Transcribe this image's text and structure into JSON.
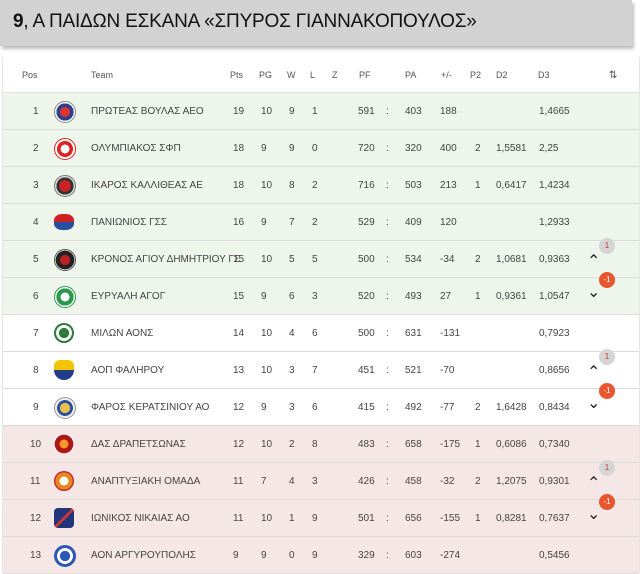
{
  "title": {
    "bold": "9",
    "rest": ", Α ΠΑΙΔΩΝ ΕΣΚΑΝΑ «ΣΠΥΡΟΣ ΓΙΑΝΝΑΚΟΠΟΥΛΟΣ»"
  },
  "headers": {
    "pos": "Pos",
    "team": "Team",
    "pts": "Pts",
    "pg": "PG",
    "w": "W",
    "l": "L",
    "z": "Z",
    "pf": "PF",
    "pa": "PA",
    "diff": "+/-",
    "p2": "P2",
    "d2": "D2",
    "d3": "D3",
    "sort": "⇅"
  },
  "colors": {
    "green_row": "#eef5ea",
    "red_row": "#f6e7e7",
    "badge_down": "#e8552e",
    "badge_up": "#d5d5d5"
  },
  "rows": [
    {
      "pos": "1",
      "team": "ΠΡΩΤΕΑΣ ΒΟΥΛΑΣ ΑΕΟ",
      "pts": "19",
      "pg": "10",
      "w": "9",
      "l": "1",
      "pf": "591",
      "sep": ":",
      "pa": "403",
      "diff": "188",
      "p2": "",
      "d2": "",
      "d3": "1,4665",
      "zone": "green",
      "logo": "logo-red-blue",
      "arrow": "",
      "badge": ""
    },
    {
      "pos": "2",
      "team": "ΟΛΥΜΠΙΑΚΟΣ ΣΦΠ",
      "pts": "18",
      "pg": "9",
      "w": "9",
      "l": "0",
      "pf": "720",
      "sep": ":",
      "pa": "320",
      "diff": "400",
      "p2": "2",
      "d2": "1,5581",
      "d3": "2,25",
      "zone": "green",
      "logo": "logo-red-white",
      "arrow": "",
      "badge": ""
    },
    {
      "pos": "3",
      "team": "ΙΚΑΡΟΣ ΚΑΛΛΙΘΕΑΣ ΑΕ",
      "pts": "18",
      "pg": "10",
      "w": "8",
      "l": "2",
      "pf": "716",
      "sep": ":",
      "pa": "503",
      "diff": "213",
      "p2": "1",
      "d2": "0,6417",
      "d3": "1,4234",
      "zone": "green",
      "logo": "logo-red-dark",
      "arrow": "",
      "badge": ""
    },
    {
      "pos": "4",
      "team": "ΠΑΝΙΩΝΙΟΣ ΓΣΣ",
      "pts": "16",
      "pg": "9",
      "w": "7",
      "l": "2",
      "pf": "529",
      "sep": ":",
      "pa": "409",
      "diff": "120",
      "p2": "",
      "d2": "",
      "d3": "1,2933",
      "zone": "green",
      "logo": "logo-red-blue-oval",
      "arrow": "",
      "badge": ""
    },
    {
      "pos": "5",
      "team": "ΚΡΟΝΟΣ ΑΓΙΟΥ ΔΗΜΗΤΡΙΟΥ ΓΣ",
      "pts": "15",
      "pg": "10",
      "w": "5",
      "l": "5",
      "pf": "500",
      "sep": ":",
      "pa": "534",
      "diff": "-34",
      "p2": "2",
      "d2": "1,0681",
      "d3": "0,9363",
      "zone": "green",
      "logo": "logo-dark-red",
      "arrow": "^",
      "badge": "1"
    },
    {
      "pos": "6",
      "team": "ΕΥΡΥΑΛΗ ΑΓΟΓ",
      "pts": "15",
      "pg": "9",
      "w": "6",
      "l": "3",
      "pf": "520",
      "sep": ":",
      "pa": "493",
      "diff": "27",
      "p2": "1",
      "d2": "0,9361",
      "d3": "1,0547",
      "zone": "green",
      "logo": "logo-green",
      "arrow": "v",
      "badge": "-1"
    },
    {
      "pos": "7",
      "team": "ΜΙΛΩΝ ΑΟΝΣ",
      "pts": "14",
      "pg": "10",
      "w": "4",
      "l": "6",
      "pf": "500",
      "sep": ":",
      "pa": "631",
      "diff": "-131",
      "p2": "",
      "d2": "",
      "d3": "0,7923",
      "zone": "white",
      "logo": "logo-green-helmet",
      "arrow": "",
      "badge": ""
    },
    {
      "pos": "8",
      "team": "ΑΟΠ ΦΑΛΗΡΟΥ",
      "pts": "13",
      "pg": "10",
      "w": "3",
      "l": "7",
      "pf": "451",
      "sep": ":",
      "pa": "521",
      "diff": "-70",
      "p2": "",
      "d2": "",
      "d3": "0,8656",
      "zone": "white",
      "logo": "logo-blue-yellow",
      "arrow": "^",
      "badge": "1"
    },
    {
      "pos": "9",
      "team": "ΦΑΡΟΣ ΚΕΡΑΤΣΙΝΙΟΥ ΑΟ",
      "pts": "12",
      "pg": "9",
      "w": "3",
      "l": "6",
      "pf": "415",
      "sep": ":",
      "pa": "492",
      "diff": "-77",
      "p2": "2",
      "d2": "1,6428",
      "d3": "0,8434",
      "zone": "white",
      "logo": "logo-yellow-blue",
      "arrow": "v",
      "badge": "-1"
    },
    {
      "pos": "10",
      "team": "ΔΑΣ ΔΡΑΠΕΤΣΩΝΑΣ",
      "pts": "12",
      "pg": "10",
      "w": "2",
      "l": "8",
      "pf": "483",
      "sep": ":",
      "pa": "658",
      "diff": "-175",
      "p2": "1",
      "d2": "0,6086",
      "d3": "0,7340",
      "zone": "red",
      "logo": "logo-red-orange",
      "arrow": "",
      "badge": ""
    },
    {
      "pos": "11",
      "team": "ΑΝΑΠΤΥΞΙΑΚΗ ΟΜΑΔΑ",
      "pts": "11",
      "pg": "7",
      "w": "4",
      "l": "3",
      "pf": "426",
      "sep": ":",
      "pa": "458",
      "diff": "-32",
      "p2": "2",
      "d2": "1,2075",
      "d3": "0,9301",
      "zone": "red",
      "logo": "logo-orange",
      "arrow": "^",
      "badge": "1"
    },
    {
      "pos": "12",
      "team": "ΙΩΝΙΚΟΣ ΝΙΚΑΙΑΣ ΑΟ",
      "pts": "11",
      "pg": "10",
      "w": "1",
      "l": "9",
      "pf": "501",
      "sep": ":",
      "pa": "656",
      "diff": "-155",
      "p2": "1",
      "d2": "0,8281",
      "d3": "0,7637",
      "zone": "red",
      "logo": "logo-blue-navy",
      "arrow": "v",
      "badge": "-1"
    },
    {
      "pos": "13",
      "team": "ΑΟΝ ΑΡΓΥΡΟΥΠΟΛΗΣ",
      "pts": "9",
      "pg": "9",
      "w": "0",
      "l": "9",
      "pf": "329",
      "sep": ":",
      "pa": "603",
      "diff": "-274",
      "p2": "",
      "d2": "",
      "d3": "0,5456",
      "zone": "red",
      "logo": "logo-blue-white",
      "arrow": "",
      "badge": ""
    }
  ]
}
